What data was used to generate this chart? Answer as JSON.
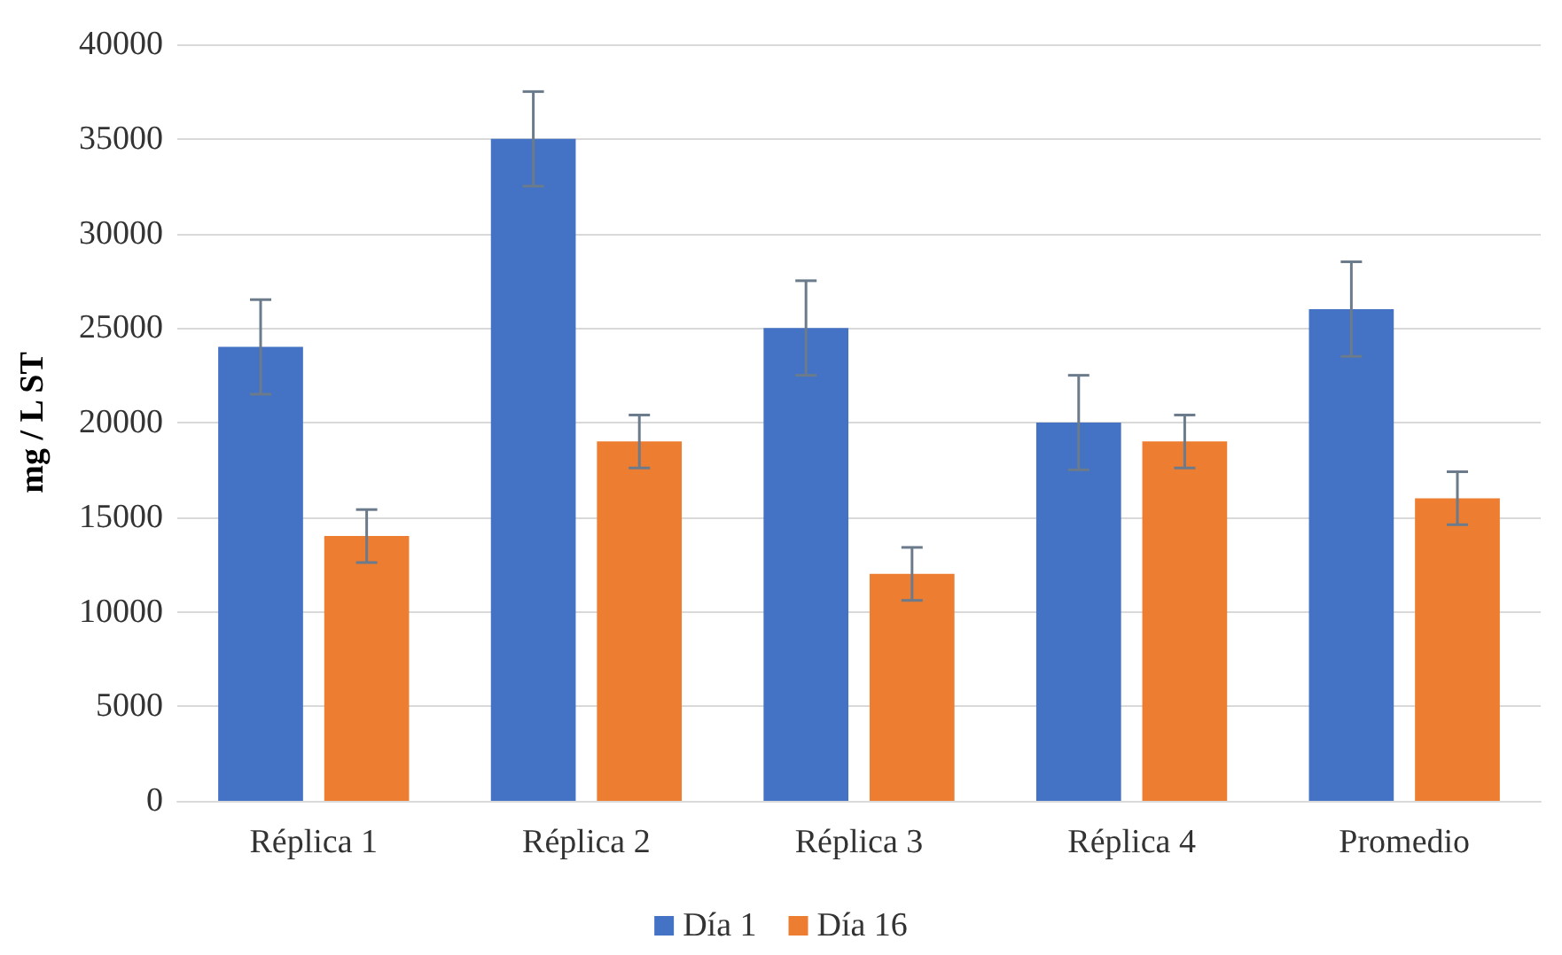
{
  "chart_data": {
    "type": "bar",
    "ylabel": "mg / L ST",
    "categories": [
      "Réplica 1",
      "Réplica 2",
      "Réplica 3",
      "Réplica 4",
      "Promedio"
    ],
    "series": [
      {
        "name": "Día 1",
        "color": "#4472c4",
        "values": [
          24000,
          35000,
          25000,
          20000,
          26000
        ],
        "errors": [
          2500,
          2500,
          2500,
          2500,
          2500
        ]
      },
      {
        "name": "Día 16",
        "color": "#ed7d31",
        "values": [
          14000,
          19000,
          12000,
          19000,
          16000
        ],
        "errors": [
          1400,
          1400,
          1400,
          1400,
          1400
        ]
      }
    ],
    "ylim": [
      0,
      40000
    ],
    "yticks": [
      0,
      5000,
      10000,
      15000,
      20000,
      25000,
      30000,
      35000,
      40000
    ],
    "grid": "y",
    "legend": "bottom"
  }
}
